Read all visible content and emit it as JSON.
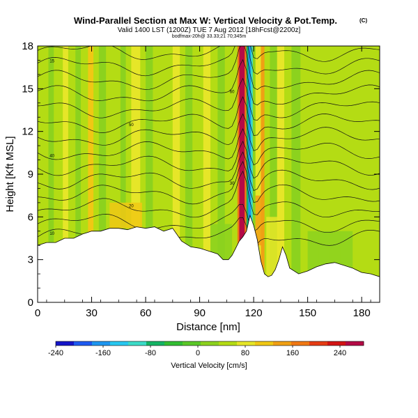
{
  "header": {
    "title": "Wind-Parallel Section at Max W: Vertical Velocity & Pot.Temp.",
    "copyright": "(C)",
    "subtitle": "Valid 1400 LST (1200Z) TUE 7 Aug 2012 [18hFcst@2200z]",
    "subtitle2": "bodfmax-20h@ 33.33;21 70;345m"
  },
  "chart_data": {
    "type": "heatmap",
    "title": "Wind-Parallel Section at Max W: Vertical Velocity & Pot.Temp.",
    "xlabel": "Distance [nm]",
    "ylabel": "Height [Kft MSL]",
    "xlim": [
      0,
      190
    ],
    "ylim": [
      0,
      18
    ],
    "x_ticks": [
      0,
      30,
      60,
      90,
      120,
      150,
      180
    ],
    "y_ticks": [
      0,
      3,
      6,
      9,
      12,
      15,
      18
    ],
    "colorbar": {
      "label": "Vertical Velocity [cm/s]",
      "range": [
        -240,
        280
      ],
      "ticks": [
        -240,
        -160,
        -80,
        0,
        80,
        160,
        240
      ],
      "colors": [
        "#1515c8",
        "#1e5af0",
        "#1e96f0",
        "#28c8f0",
        "#3cdcc8",
        "#14b464",
        "#32be32",
        "#5ac828",
        "#8cd21e",
        "#b4dc14",
        "#e6e628",
        "#f0c814",
        "#f0a014",
        "#f07814",
        "#e63c14",
        "#d21414",
        "#b40a46"
      ]
    },
    "terrain": {
      "description": "terrain profile (kft MSL) along section",
      "x": [
        0,
        5,
        10,
        15,
        20,
        25,
        30,
        35,
        40,
        45,
        50,
        55,
        60,
        65,
        70,
        75,
        80,
        85,
        90,
        95,
        100,
        103,
        106,
        108,
        110,
        112,
        114,
        116,
        118,
        120,
        122,
        124,
        126,
        128,
        130,
        132,
        134,
        136,
        138,
        140,
        145,
        150,
        155,
        160,
        165,
        170,
        175,
        180,
        185,
        190
      ],
      "y": [
        4.0,
        4.2,
        4.2,
        4.5,
        4.5,
        4.8,
        5.0,
        5.0,
        5.2,
        5.2,
        5.1,
        5.3,
        5.2,
        5.3,
        5.0,
        5.2,
        4.3,
        3.9,
        3.8,
        3.6,
        3.4,
        3.0,
        3.0,
        3.3,
        3.8,
        4.3,
        4.6,
        5.0,
        6.1,
        5.4,
        4.4,
        2.9,
        2.0,
        1.8,
        1.9,
        2.3,
        3.0,
        3.9,
        3.3,
        2.4,
        2.0,
        2.2,
        2.5,
        2.7,
        2.8,
        2.6,
        2.4,
        2.1,
        2.0,
        1.8
      ]
    },
    "theta_contours": {
      "description": "potential temperature isentropes, labeled every 2 K",
      "labels": [
        "10",
        "15",
        "20",
        "25",
        "30",
        "35",
        "40",
        "45",
        "50",
        "55",
        "60"
      ]
    },
    "max_updraft": {
      "x": 114,
      "value_cm_s": 280
    },
    "max_downdraft": {
      "x": 119,
      "value_cm_s": -160
    }
  }
}
